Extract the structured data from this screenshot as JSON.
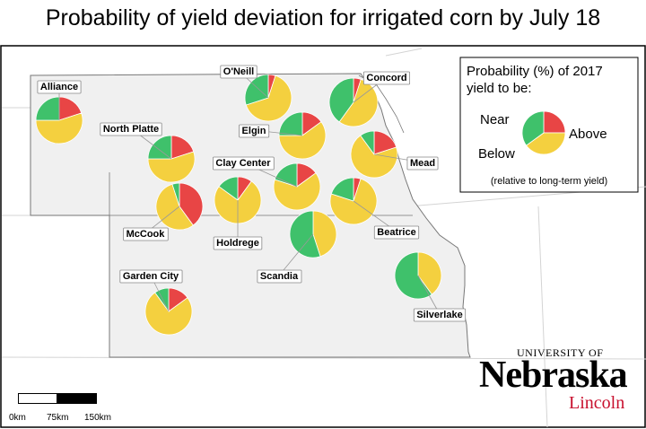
{
  "title": "Probability of yield deviation for irrigated corn by July 18",
  "colors": {
    "below": "#e84545",
    "near": "#f4d03f",
    "above": "#3fc16b",
    "state_fill": "#f0f0f0",
    "state_stroke": "#777777",
    "background": "#ffffff",
    "logo_red": "#c8102e"
  },
  "sites": [
    {
      "name": "Alliance",
      "below": 20,
      "near": 55,
      "above": 25
    },
    {
      "name": "O'Neill",
      "below": 5,
      "near": 65,
      "above": 30
    },
    {
      "name": "Concord",
      "below": 5,
      "near": 55,
      "above": 40
    },
    {
      "name": "North Platte",
      "below": 20,
      "near": 55,
      "above": 25
    },
    {
      "name": "Elgin",
      "below": 15,
      "near": 60,
      "above": 25
    },
    {
      "name": "Mead",
      "below": 20,
      "near": 70,
      "above": 10
    },
    {
      "name": "Clay Center",
      "below": 15,
      "near": 65,
      "above": 20
    },
    {
      "name": "McCook",
      "below": 40,
      "near": 55,
      "above": 5
    },
    {
      "name": "Holdrege",
      "below": 10,
      "near": 75,
      "above": 15
    },
    {
      "name": "Beatrice",
      "below": 5,
      "near": 75,
      "above": 20
    },
    {
      "name": "Scandia",
      "below": 0,
      "near": 45,
      "above": 55
    },
    {
      "name": "Garden City",
      "below": 15,
      "near": 75,
      "above": 10
    },
    {
      "name": "Silverlake",
      "below": 0,
      "near": 40,
      "above": 60
    }
  ],
  "legend": {
    "title_line1": "Probability (%) of 2017",
    "title_line2": "yield to be:",
    "near": "Near",
    "above": "Above",
    "below": "Below",
    "note": "(relative to long-term yield)",
    "example": {
      "below": 25,
      "near": 40,
      "above": 35
    }
  },
  "scale": {
    "labels": [
      "0km",
      "75km",
      "150km"
    ]
  },
  "logo": {
    "university": "UNIVERSITY OF",
    "name": "Nebraska",
    "campus": "Lincoln"
  }
}
